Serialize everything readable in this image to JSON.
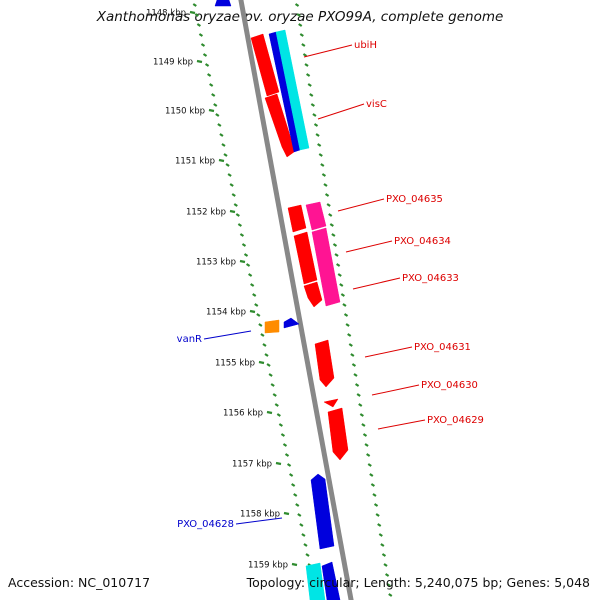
{
  "title": "Xanthomonas oryzae pv. oryzae PXO99A, complete genome",
  "footer": {
    "accession": "Accession: NC_010717",
    "topology": "Topology: circular; Length: 5,240,075 bp; Genes: 5,048"
  },
  "colors": {
    "backbone": "#888888",
    "tick": "#2e8b2e",
    "gene_red": "#ff0000",
    "gene_blue": "#0000dd",
    "gene_cyan": "#00e5e5",
    "gene_magenta": "#ff1493",
    "gene_orange": "#ff8c00",
    "label_reverse": "#0000cc",
    "label_forward": "#dd0000"
  },
  "ruler": {
    "unit": "kbp",
    "ticks": [
      "1148 kbp",
      "1149 kbp",
      "1150 kbp",
      "1151 kbp",
      "1152 kbp",
      "1153 kbp",
      "1154 kbp",
      "1155 kbp",
      "1156 kbp",
      "1157 kbp",
      "1158 kbp",
      "1159 kbp"
    ]
  },
  "gene_labels": {
    "reverse": [
      "vanR",
      "PXO_04628"
    ],
    "forward": [
      "ubiH",
      "visC",
      "PXO_04635",
      "PXO_04634",
      "PXO_04633",
      "PXO_04631",
      "PXO_04630",
      "PXO_04629"
    ]
  }
}
